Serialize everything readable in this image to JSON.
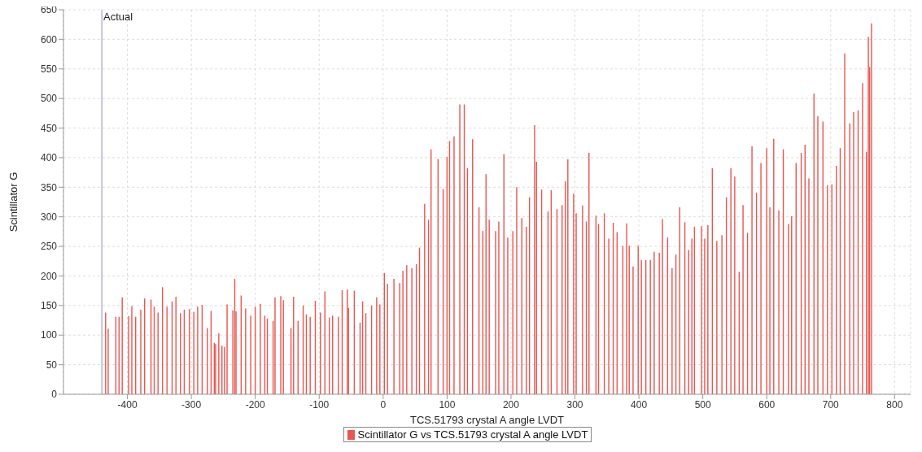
{
  "chart_data": {
    "type": "bar",
    "xlabel": "TCS.51793 crystal A angle LVDT",
    "ylabel": "Scintillator G",
    "x": [
      -434,
      -430,
      -418,
      -413,
      -408,
      -398,
      -393,
      -387,
      -379,
      -373,
      -363,
      -358,
      -352,
      -345,
      -338,
      -330,
      -324,
      -317,
      -311,
      -303,
      -296,
      -290,
      -283,
      -275,
      -269,
      -264,
      -262,
      -257,
      -252,
      -248,
      -244,
      -235,
      -232,
      -230,
      -222,
      -215,
      -207,
      -200,
      -192,
      -185,
      -181,
      -172,
      -169,
      -160,
      -156,
      -144,
      -140,
      -133,
      -125,
      -120,
      -114,
      -106,
      -98,
      -91,
      -84,
      -79,
      -70,
      -64,
      -56,
      -54,
      -45,
      -36,
      -32,
      -27,
      -18,
      -10,
      -5,
      2,
      7,
      17,
      26,
      31,
      37,
      45,
      52,
      57,
      65,
      71,
      75,
      86,
      94,
      100,
      104,
      111,
      120,
      127,
      132,
      140,
      150,
      156,
      161,
      166,
      176,
      181,
      189,
      195,
      203,
      209,
      217,
      224,
      229,
      237,
      240,
      248,
      258,
      263,
      272,
      280,
      285,
      289,
      298,
      302,
      312,
      318,
      322,
      333,
      337,
      346,
      353,
      360,
      366,
      375,
      381,
      385,
      391,
      399,
      404,
      411,
      418,
      424,
      432,
      437,
      445,
      452,
      458,
      464,
      472,
      478,
      483,
      487,
      498,
      503,
      508,
      515,
      522,
      530,
      537,
      544,
      550,
      557,
      563,
      570,
      577,
      584,
      591,
      600,
      605,
      611,
      619,
      626,
      634,
      639,
      646,
      654,
      660,
      666,
      674,
      680,
      688,
      695,
      702,
      709,
      715,
      722,
      730,
      736,
      743,
      750,
      756,
      759,
      761,
      764
    ],
    "series": [
      {
        "name": "Scintillator G vs TCS.51793 crystal A angle LVDT",
        "color": "#e85650",
        "values": [
          138,
          111,
          131,
          131,
          164,
          132,
          149,
          131,
          143,
          162,
          160,
          148,
          138,
          181,
          148,
          157,
          165,
          137,
          143,
          144,
          139,
          148,
          151,
          112,
          141,
          87,
          85,
          103,
          82,
          80,
          152,
          142,
          195,
          140,
          167,
          145,
          133,
          148,
          153,
          133,
          128,
          124,
          164,
          166,
          159,
          112,
          165,
          124,
          150,
          135,
          131,
          158,
          138,
          174,
          130,
          133,
          131,
          176,
          177,
          146,
          175,
          121,
          157,
          137,
          150,
          164,
          152,
          205,
          187,
          195,
          188,
          209,
          218,
          213,
          220,
          248,
          322,
          295,
          414,
          398,
          347,
          401,
          428,
          436,
          490,
          490,
          382,
          431,
          316,
          276,
          372,
          295,
          276,
          292,
          406,
          265,
          276,
          350,
          298,
          283,
          333,
          455,
          393,
          346,
          309,
          345,
          313,
          320,
          360,
          397,
          339,
          306,
          319,
          292,
          408,
          302,
          288,
          306,
          263,
          290,
          274,
          251,
          289,
          251,
          216,
          251,
          227,
          227,
          227,
          241,
          239,
          296,
          265,
          213,
          236,
          316,
          291,
          244,
          263,
          283,
          284,
          263,
          286,
          382,
          259,
          269,
          333,
          382,
          368,
          207,
          320,
          273,
          419,
          341,
          391,
          416,
          316,
          432,
          311,
          414,
          288,
          301,
          391,
          408,
          422,
          365,
          508,
          470,
          461,
          353,
          355,
          386,
          416,
          576,
          458,
          477,
          480,
          526,
          410,
          604,
          553,
          627
        ]
      }
    ],
    "xlim": [
      -500,
      825
    ],
    "xticks": [
      -400,
      -300,
      -200,
      -100,
      0,
      100,
      200,
      300,
      400,
      500,
      600,
      700,
      800
    ],
    "ylim": [
      0,
      650
    ],
    "yticks": [
      0,
      50,
      100,
      150,
      200,
      250,
      300,
      350,
      400,
      450,
      500,
      550,
      600,
      650
    ],
    "grid": true,
    "legend": "bottom",
    "ref_lines": [
      {
        "axis": "x",
        "value": -440,
        "label": "Actual",
        "color": "#8c8cb4"
      }
    ]
  }
}
